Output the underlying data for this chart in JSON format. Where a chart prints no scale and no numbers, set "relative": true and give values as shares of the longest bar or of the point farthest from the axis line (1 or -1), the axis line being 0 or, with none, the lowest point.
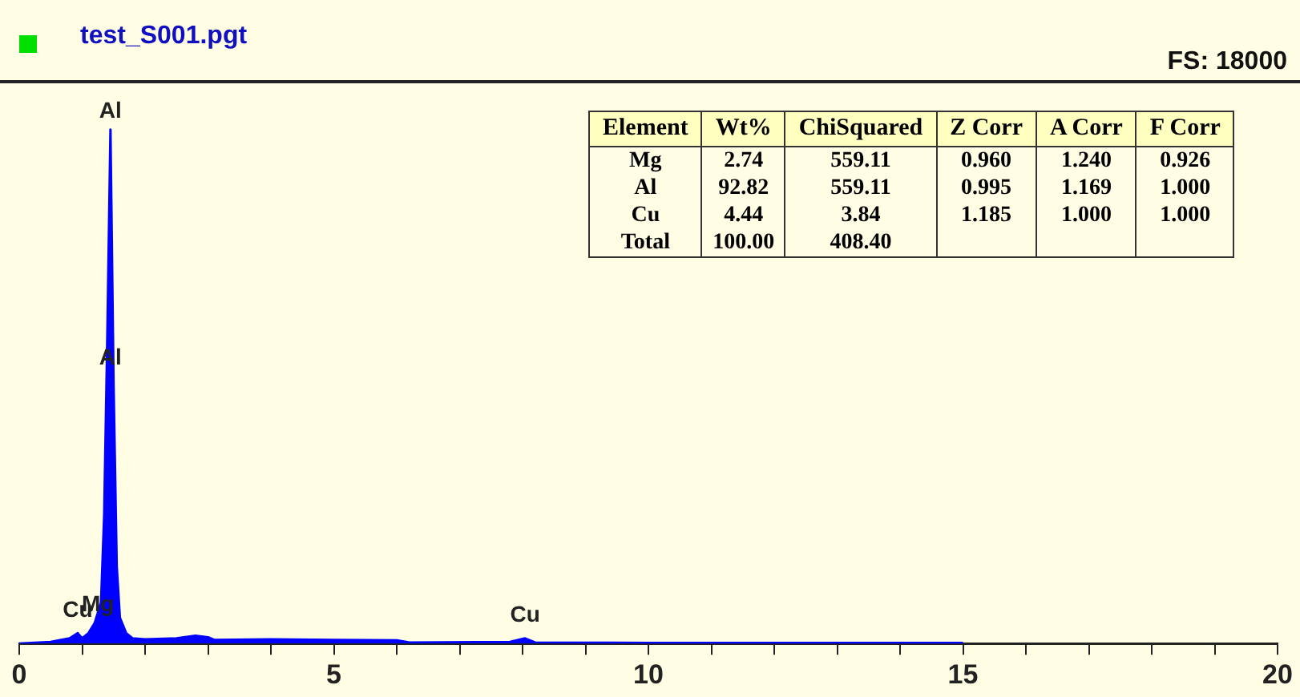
{
  "chart_data": [
    {
      "type": "area",
      "title": "test_S001.pgt",
      "subtitle": "FS: 18000",
      "relative": true,
      "color": "#0000ff",
      "x": [
        0,
        0.5,
        0.8,
        0.93,
        1.0,
        1.1,
        1.2,
        1.25,
        1.3,
        1.35,
        1.4,
        1.45,
        1.5,
        1.55,
        1.6,
        1.7,
        1.8,
        2.0,
        2.5,
        2.8,
        3.0,
        3.1,
        4.0,
        5.0,
        6.0,
        6.2,
        7.8,
        8.04,
        8.2,
        10,
        15
      ],
      "values": [
        0,
        0.003,
        0.01,
        0.02,
        0.01,
        0.02,
        0.04,
        0.06,
        0.08,
        0.25,
        0.6,
        1,
        0.5,
        0.15,
        0.05,
        0.02,
        0.01,
        0.008,
        0.01,
        0.015,
        0.012,
        0.007,
        0.008,
        0.007,
        0.006,
        0.002,
        0.003,
        0.01,
        0.002,
        0.001,
        0.001
      ],
      "xlim": [
        0,
        20
      ],
      "xticks": [
        0,
        {
          "value": 1,
          "label": null
        },
        {
          "value": 2,
          "label": null
        },
        {
          "value": 3,
          "label": null
        },
        {
          "value": 4,
          "label": null
        },
        5,
        {
          "value": 6,
          "label": null
        },
        {
          "value": 7,
          "label": null
        },
        {
          "value": 8,
          "label": null
        },
        {
          "value": 9,
          "label": null
        },
        10,
        {
          "value": 11,
          "label": null
        },
        {
          "value": 12,
          "label": null
        },
        {
          "value": 13,
          "label": null
        },
        {
          "value": 14,
          "label": null
        },
        15,
        {
          "value": 16,
          "label": null
        },
        {
          "value": 17,
          "label": null
        },
        {
          "value": 18,
          "label": null
        },
        {
          "value": 19,
          "label": null
        },
        20
      ],
      "grid": false,
      "legend": false,
      "annotations": [
        {
          "text": "Al",
          "x": 1.45,
          "y": 1
        },
        {
          "text": "Al",
          "x": 1.45,
          "y": 0.52
        },
        {
          "text": "Cu",
          "x": 0.93,
          "y": 0.03
        },
        {
          "text": "Mg",
          "x": 1.25,
          "y": 0.04
        },
        {
          "text": "Cu",
          "x": 8.04,
          "y": 0.02
        }
      ]
    },
    {
      "type": "other",
      "ylabel": "Element",
      "categories": [
        "Wt%",
        "ChiSquared",
        "Z Corr",
        "A Corr",
        "F Corr"
      ],
      "y_categories": [
        "Mg",
        "Al",
        "Cu",
        "Total"
      ],
      "cell_labels": [
        [
          "2.74",
          "559.11",
          "0.960",
          "1.240",
          "0.926"
        ],
        [
          "92.82",
          "559.11",
          "0.995",
          "1.169",
          "1.000"
        ],
        [
          "4.44",
          "3.84",
          "1.185",
          "1.000",
          "1.000"
        ],
        [
          "100.00",
          "408.40",
          null,
          null,
          null
        ]
      ]
    }
  ]
}
